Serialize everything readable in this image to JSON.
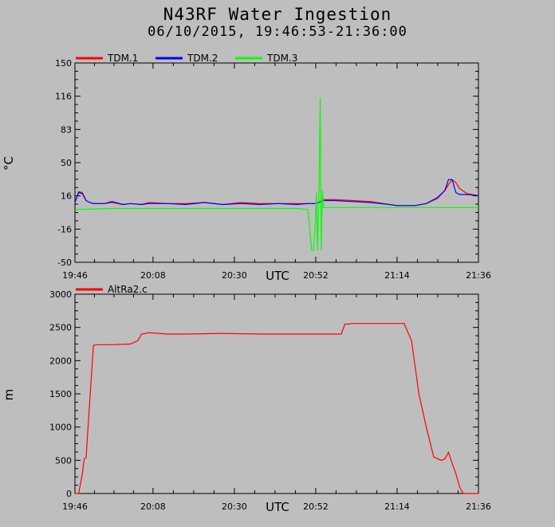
{
  "title": "N43RF Water Ingestion",
  "subtitle": "06/10/2015, 19:46:53-21:36:00",
  "chart_data": [
    {
      "type": "line",
      "ylabel": "°C",
      "xlabel": "UTC",
      "xlim": [
        0,
        109.1
      ],
      "ylim": [
        -50,
        150
      ],
      "yticks": [
        "150",
        "116",
        "83",
        "50",
        "16",
        "-16",
        "-50"
      ],
      "ytick_values": [
        150,
        116.7,
        83.3,
        50,
        16.7,
        -16.7,
        -50
      ],
      "xticks": [
        "19:46",
        "20:08",
        "20:30",
        "20:52",
        "21:14",
        "21:36"
      ],
      "xtick_values": [
        0,
        21.1,
        43.1,
        65.1,
        87.1,
        109.1
      ],
      "legend_position": "top-left",
      "series": [
        {
          "name": "TDM.1",
          "color": "#ff0000",
          "x": [
            0,
            1,
            2,
            3,
            4,
            5,
            8,
            10,
            13,
            15,
            18,
            20,
            25,
            30,
            35,
            40,
            45,
            50,
            55,
            60,
            63,
            65,
            66,
            67,
            70,
            75,
            80,
            85,
            87,
            90,
            92,
            95,
            98,
            100,
            101,
            102,
            103,
            104,
            106,
            109.1
          ],
          "y": [
            10,
            21,
            20,
            12,
            10,
            9,
            9,
            10,
            8,
            9,
            8,
            10,
            9,
            9,
            10,
            8,
            10,
            9,
            9,
            9,
            9,
            9,
            10,
            13,
            13,
            12,
            11,
            8,
            7,
            7,
            7,
            9,
            14,
            22,
            28,
            33,
            30,
            24,
            19,
            17
          ]
        },
        {
          "name": "TDM.2",
          "color": "#0000ff",
          "x": [
            0,
            1,
            2,
            3,
            4,
            5,
            8,
            10,
            13,
            15,
            18,
            20,
            25,
            30,
            35,
            40,
            45,
            50,
            55,
            60,
            63,
            65,
            66,
            67,
            70,
            75,
            80,
            85,
            87,
            90,
            92,
            95,
            98,
            100,
            101,
            102,
            103,
            104,
            106,
            109.1
          ],
          "y": [
            10,
            20,
            19,
            12,
            10,
            9,
            9,
            11,
            8,
            9,
            8,
            9,
            9,
            8,
            10,
            8,
            9,
            8,
            9,
            8,
            9,
            9,
            10,
            12,
            12,
            11,
            10,
            8,
            7,
            7,
            7,
            9,
            15,
            22,
            33,
            33,
            20,
            18,
            18,
            17
          ]
        },
        {
          "name": "TDM.3",
          "color": "#00ff00",
          "x": [
            0,
            10,
            20,
            30,
            40,
            50,
            60,
            63,
            64,
            64.5,
            65,
            65.3,
            65.6,
            66,
            66.3,
            66.6,
            66.9,
            67.2,
            68,
            80,
            90,
            100,
            109.1
          ],
          "y": [
            3,
            4,
            4,
            4,
            4,
            4,
            4,
            3,
            -38,
            -38,
            -10,
            20,
            -38,
            20,
            115,
            -38,
            22,
            5,
            5,
            5,
            5,
            5,
            5
          ]
        }
      ]
    },
    {
      "type": "line",
      "ylabel": "m",
      "xlabel": "UTC",
      "xlim": [
        0,
        109.1
      ],
      "ylim": [
        0,
        3000
      ],
      "yticks": [
        "3000",
        "2500",
        "2000",
        "1500",
        "1000",
        "500",
        "0"
      ],
      "ytick_values": [
        3000,
        2500,
        2000,
        1500,
        1000,
        500,
        0
      ],
      "xticks": [
        "19:46",
        "20:08",
        "20:30",
        "20:52",
        "21:14",
        "21:36"
      ],
      "xtick_values": [
        0,
        21.1,
        43.1,
        65.1,
        87.1,
        109.1
      ],
      "legend_position": "top-left",
      "series": [
        {
          "name": "AltRa2.c",
          "color": "#ff0000",
          "x": [
            0,
            1,
            2,
            2.5,
            3,
            4,
            5,
            6,
            10,
            15,
            17,
            18,
            20,
            25,
            30,
            40,
            50,
            60,
            70,
            72,
            73,
            74,
            75,
            80,
            85,
            89,
            91,
            92,
            93,
            95,
            97,
            99,
            100,
            101,
            102,
            103,
            104,
            105,
            106,
            107,
            108,
            109.1
          ],
          "y": [
            0,
            0,
            300,
            520,
            540,
            1400,
            2230,
            2240,
            2240,
            2250,
            2300,
            2400,
            2420,
            2400,
            2400,
            2410,
            2400,
            2400,
            2400,
            2400,
            2550,
            2550,
            2560,
            2560,
            2560,
            2560,
            2300,
            1900,
            1500,
            1000,
            550,
            500,
            520,
            620,
            450,
            300,
            100,
            0,
            0,
            0,
            0,
            0
          ]
        }
      ]
    }
  ]
}
